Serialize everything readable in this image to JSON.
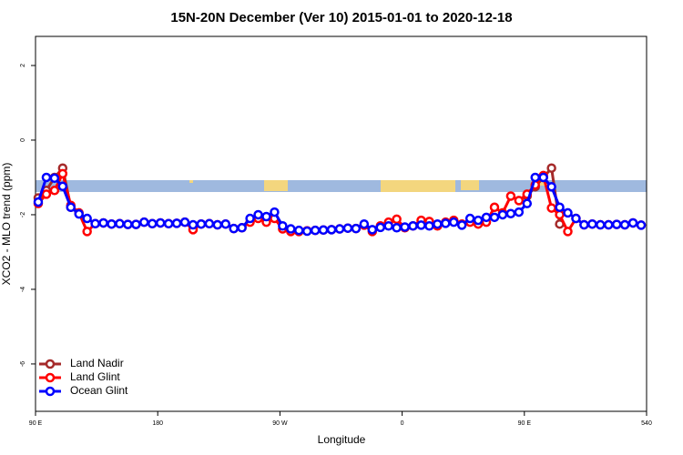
{
  "chart_data": {
    "type": "line",
    "title": "15N-20N December (Ver 10)   2015-01-01 to 2020-12-18",
    "x_label": "Longitude",
    "y_label": "XCO2 - MLO trend (ppm)",
    "xlim": [
      90,
      540
    ],
    "ylim": [
      -7.27,
      2.78
    ],
    "xticks": [
      {
        "value": 90,
        "label": "90 E"
      },
      180,
      {
        "value": 270,
        "label": "90 W"
      },
      {
        "value": 360,
        "label": "0"
      },
      {
        "value": 450,
        "label": "90 E"
      },
      540
    ],
    "yticks": [
      -6,
      -4,
      -2,
      0,
      2
    ],
    "legend": "bottomleft",
    "x": [
      92,
      98,
      104,
      110,
      116,
      122,
      128,
      134,
      140,
      146,
      152,
      158,
      164,
      170,
      176,
      182,
      188,
      194,
      200,
      206,
      212,
      218,
      224,
      230,
      236,
      242,
      248,
      254,
      260,
      266,
      272,
      278,
      284,
      290,
      296,
      302,
      308,
      314,
      320,
      326,
      332,
      338,
      344,
      350,
      356,
      362,
      368,
      374,
      380,
      386,
      392,
      398,
      404,
      410,
      416,
      422,
      428,
      434,
      440,
      446,
      452,
      458,
      464,
      470,
      476,
      482,
      488,
      494,
      500,
      506,
      512,
      518,
      524,
      530,
      536
    ],
    "series": [
      {
        "name": "Land Nadir",
        "color": "#a52a2a",
        "values": [
          -1.55,
          -1.35,
          -1.0,
          -0.75,
          -1.8,
          null,
          null,
          null,
          null,
          null,
          null,
          null,
          null,
          null,
          null,
          null,
          null,
          null,
          null,
          null,
          null,
          null,
          null,
          null,
          null,
          null,
          null,
          null,
          null,
          null,
          null,
          null,
          null,
          null,
          null,
          null,
          null,
          null,
          null,
          null,
          null,
          null,
          null,
          null,
          null,
          null,
          null,
          null,
          null,
          null,
          null,
          null,
          null,
          null,
          null,
          null,
          null,
          null,
          null,
          null,
          -1.5,
          -1.25,
          -1.0,
          -0.75,
          -2.25,
          null,
          null,
          null,
          null,
          null,
          null,
          null,
          null,
          null,
          null
        ]
      },
      {
        "name": "Land Glint",
        "color": "#ff0000",
        "values": [
          -1.7,
          -1.45,
          -1.35,
          -0.9,
          -1.75,
          -1.95,
          -2.45,
          -2.24,
          -2.22,
          -2.25,
          -2.24,
          -2.26,
          -2.26,
          -2.2,
          -2.24,
          -2.22,
          -2.24,
          -2.23,
          -2.2,
          -2.4,
          -2.25,
          -2.24,
          -2.27,
          -2.25,
          -2.37,
          -2.35,
          -2.2,
          -2.1,
          -2.2,
          -2.1,
          -2.38,
          -2.45,
          -2.45,
          -2.43,
          -2.42,
          -2.41,
          -2.4,
          -2.38,
          -2.36,
          -2.37,
          -2.28,
          -2.45,
          -2.3,
          -2.2,
          -2.12,
          -2.35,
          -2.3,
          -2.15,
          -2.18,
          -2.3,
          -2.2,
          -2.15,
          -2.25,
          -2.2,
          -2.25,
          -2.2,
          -1.8,
          -1.95,
          -1.5,
          -1.62,
          -1.45,
          -1.2,
          -0.95,
          -1.82,
          -2.0,
          -2.45,
          -2.1,
          -2.27,
          -2.25,
          -2.27,
          -2.27,
          -2.26,
          -2.27,
          -2.22,
          -2.28
        ]
      },
      {
        "name": "Ocean Glint",
        "color": "#0000ff",
        "values": [
          -1.66,
          -1.0,
          -1.02,
          -1.24,
          -1.8,
          -1.98,
          -2.1,
          -2.24,
          -2.22,
          -2.25,
          -2.24,
          -2.26,
          -2.26,
          -2.2,
          -2.24,
          -2.22,
          -2.24,
          -2.23,
          -2.2,
          -2.27,
          -2.25,
          -2.24,
          -2.27,
          -2.25,
          -2.37,
          -2.35,
          -2.1,
          -2.0,
          -2.05,
          -1.93,
          -2.3,
          -2.38,
          -2.42,
          -2.44,
          -2.42,
          -2.41,
          -2.4,
          -2.38,
          -2.36,
          -2.37,
          -2.25,
          -2.4,
          -2.34,
          -2.3,
          -2.35,
          -2.33,
          -2.3,
          -2.28,
          -2.3,
          -2.25,
          -2.23,
          -2.2,
          -2.28,
          -2.1,
          -2.15,
          -2.07,
          -2.07,
          -2.0,
          -1.97,
          -1.93,
          -1.7,
          -1.0,
          -1.0,
          -1.25,
          -1.8,
          -1.95,
          -2.1,
          -2.27,
          -2.25,
          -2.27,
          -2.27,
          -2.26,
          -2.27,
          -2.22,
          -2.28
        ]
      }
    ]
  }
}
